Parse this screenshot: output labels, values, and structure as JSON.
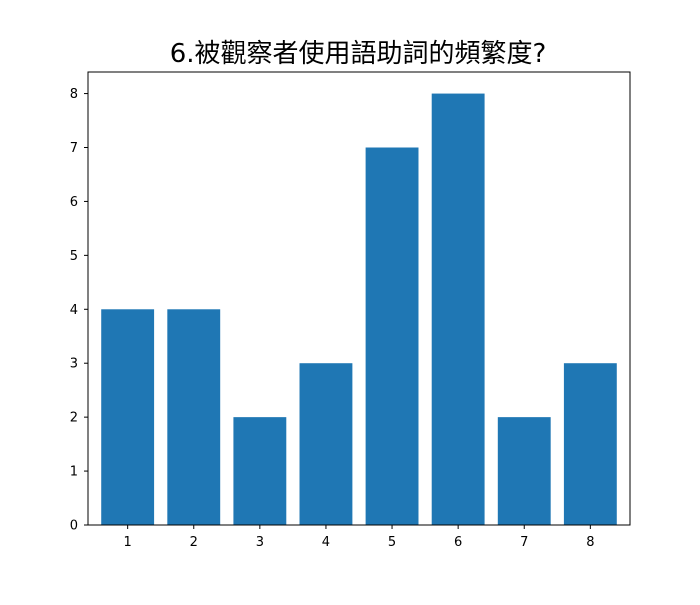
{
  "colors": {
    "bar": "#1f77b4",
    "axis": "#000000",
    "background": "#ffffff"
  },
  "chart_data": {
    "type": "bar",
    "title": "6.被觀察者使用語助詞的頻繁度?",
    "xlabel": "",
    "ylabel": "",
    "categories": [
      "1",
      "2",
      "3",
      "4",
      "5",
      "6",
      "7",
      "8"
    ],
    "values": [
      4,
      4,
      2,
      3,
      7,
      8,
      2,
      3
    ],
    "xlim": [
      0.4,
      8.6
    ],
    "ylim": [
      0,
      8.4
    ],
    "yticks": [
      "0",
      "1",
      "2",
      "3",
      "4",
      "5",
      "6",
      "7",
      "8"
    ],
    "grid": false,
    "legend": "none"
  }
}
